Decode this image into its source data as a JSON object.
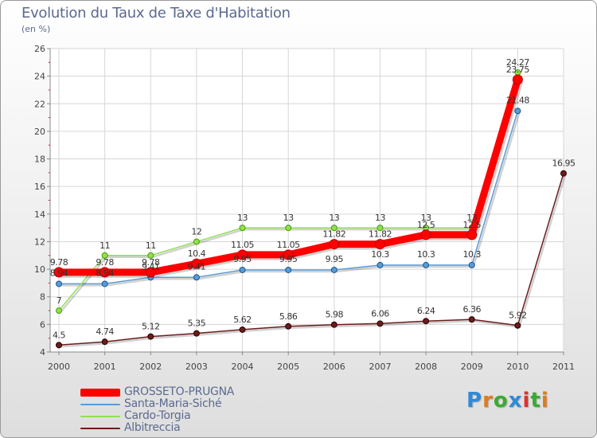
{
  "title": "Evolution du Taux de Taxe d'Habitation",
  "subtitle": "(en %)",
  "brand": {
    "logo_text": "Proxiti",
    "letter_colors": [
      "#2f8ad8",
      "#e07b1c",
      "#3aaa35",
      "#2f8ad8",
      "#e03030",
      "#3aaa35",
      "#e07b1c"
    ]
  },
  "chart_data": {
    "type": "line",
    "x": [
      "2000",
      "2001",
      "2002",
      "2003",
      "2004",
      "2005",
      "2006",
      "2007",
      "2008",
      "2009",
      "2010",
      "2011"
    ],
    "ylim": [
      4,
      26
    ],
    "yticks": [
      "4",
      "6",
      "8",
      "10",
      "12",
      "14",
      "16",
      "18",
      "20",
      "22",
      "24",
      "26"
    ],
    "grid": true,
    "legend_position": "bottom-left",
    "series": [
      {
        "name": "GROSSETO-PRUGNA",
        "color": "#ff0000",
        "values": [
          9.78,
          9.78,
          9.78,
          10.4,
          11.05,
          11.05,
          11.82,
          11.82,
          12.5,
          12.5,
          23.75,
          null
        ],
        "labels": [
          "9.78",
          "9.78",
          "9.78",
          "10.4",
          "11.05",
          "11.05",
          "11.82",
          "11.82",
          "12.5",
          "12.5",
          "23.75",
          ""
        ]
      },
      {
        "name": "Santa-Maria-Siché",
        "color": "#5b9bd5",
        "values": [
          8.94,
          8.94,
          9.41,
          9.41,
          9.95,
          9.95,
          9.95,
          10.3,
          10.3,
          10.3,
          21.48,
          null
        ],
        "labels": [
          "8.94",
          "8.94",
          "9.41",
          "9.41",
          "9.95",
          "9.95",
          "9.95",
          "10.3",
          "10.3",
          "10.3",
          "21.48",
          ""
        ]
      },
      {
        "name": "Cardo-Torgia",
        "color": "#90e050",
        "values": [
          7,
          11,
          11,
          12,
          13,
          13,
          13,
          13,
          13,
          13,
          24.27,
          null
        ],
        "labels": [
          "7",
          "11",
          "11",
          "12",
          "13",
          "13",
          "13",
          "13",
          "13",
          "13",
          "24.27",
          ""
        ]
      },
      {
        "name": "Albitreccia",
        "color": "#6b1c1c",
        "values": [
          4.5,
          4.74,
          5.12,
          5.35,
          5.62,
          5.86,
          5.98,
          6.06,
          6.24,
          6.36,
          5.92,
          16.95
        ],
        "labels": [
          "4.5",
          "4.74",
          "5.12",
          "5.35",
          "5.62",
          "5.86",
          "5.98",
          "6.06",
          "6.24",
          "6.36",
          "5.92",
          "16.95"
        ]
      }
    ]
  }
}
